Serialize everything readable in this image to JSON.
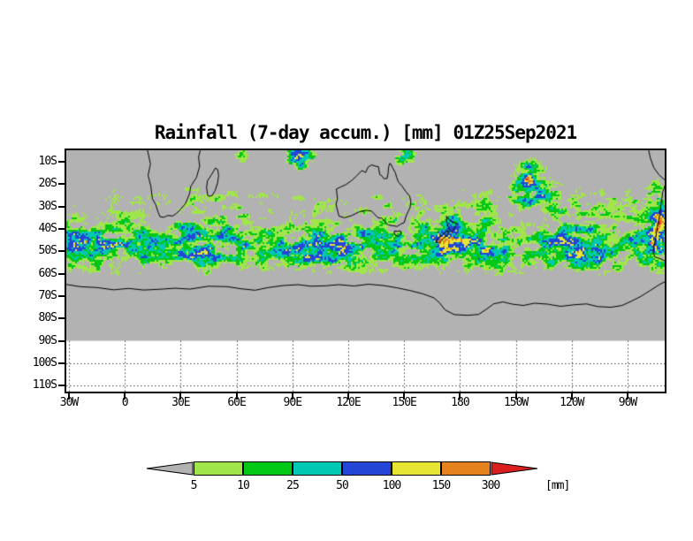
{
  "title": "Rainfall (7-day accum.) [mm] 01Z25Sep2021",
  "chart_data": {
    "type": "heatmap",
    "title": "Rainfall (7-day accum.) [mm] 01Z25Sep2021",
    "units": "mm",
    "lat_ticks": [
      "10S",
      "20S",
      "30S",
      "40S",
      "50S",
      "60S",
      "70S",
      "80S",
      "90S",
      "100S",
      "110S"
    ],
    "lon_ticks": [
      "30W",
      "0",
      "30E",
      "60E",
      "90E",
      "120E",
      "150E",
      "180",
      "150W",
      "120W",
      "90W"
    ],
    "background_color": "#b2b2b2",
    "land_outline_color": "#000000",
    "grid_style": "dotted",
    "colorbar": {
      "levels": [
        5,
        10,
        25,
        50,
        100,
        150,
        300
      ],
      "unit_label": "[mm]",
      "segment_colors": [
        "#b2b2b2",
        "#a0e64a",
        "#00c814",
        "#00c8b4",
        "#2346d7",
        "#e6e632",
        "#e6821e",
        "#dc1e1e"
      ]
    },
    "field_summary": "7-day accumulated rainfall over the Southern Hemisphere oceans; a speckled storm-track band of 5-100 mm (green/cyan/blue) spans roughly 30S-60S at all longitudes, with isolated 100-300+ mm cells (yellow/orange/red) near 90E-150E at 10S, near 150W 15-25S, and along the South American coast; gray indicates < 5 mm, white band south of 90S is outside the data region."
  }
}
